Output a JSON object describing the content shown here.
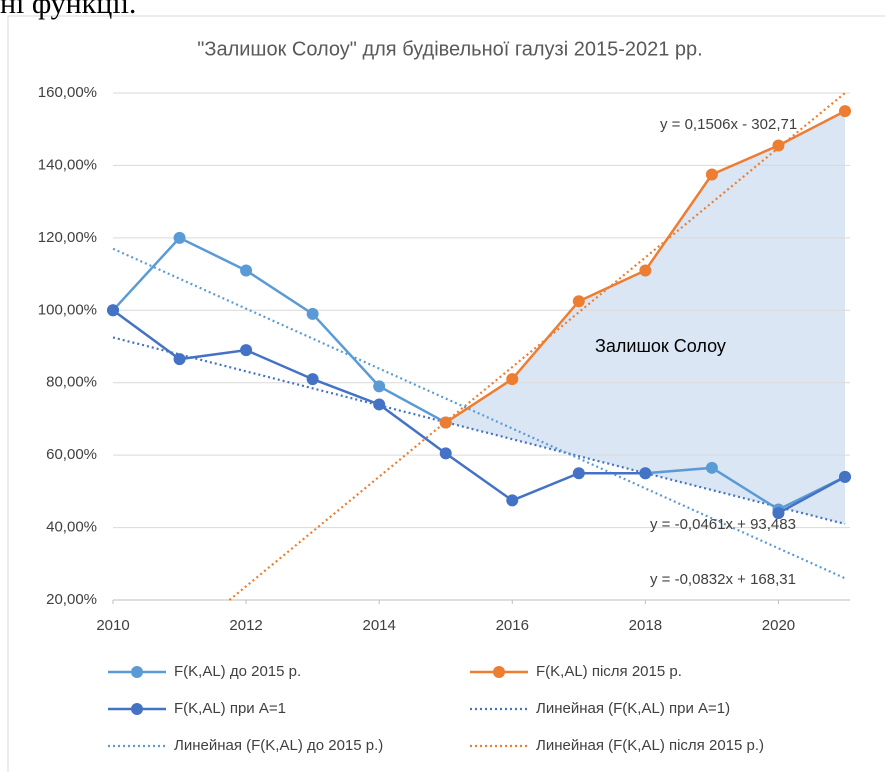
{
  "header_fragment": "ні функції.",
  "chart_data": {
    "type": "line",
    "title": "\"Залишок Солоу\" для будівельної галузі 2015-2021 рр.",
    "x": [
      2010,
      2011,
      2012,
      2013,
      2014,
      2015,
      2016,
      2017,
      2018,
      2019,
      2020,
      2021
    ],
    "series": [
      {
        "name": "F(K,AL) до 2015 р.",
        "color": "#5b9bd5",
        "values": [
          100,
          120,
          111,
          99,
          79,
          69,
          null,
          null,
          55,
          56.5,
          45,
          54
        ]
      },
      {
        "name": "F(K,AL) після 2015 р.",
        "color": "#ed7d31",
        "values": [
          null,
          null,
          null,
          null,
          null,
          69,
          81,
          102.5,
          111,
          137.5,
          145.5,
          155
        ]
      },
      {
        "name": "F(K,AL) при A=1",
        "color": "#4472c4",
        "values": [
          100,
          86.5,
          89,
          81,
          74,
          60.5,
          47.5,
          55,
          55,
          null,
          44,
          54
        ]
      }
    ],
    "trendlines": [
      {
        "name": "Линейная (F(K,AL) при A=1)",
        "color": "#4472c4",
        "x": [
          2010,
          2021
        ],
        "values": [
          92.5,
          41
        ]
      },
      {
        "name": "Линейная (F(K,AL) до 2015 р.)",
        "color": "#5b9bd5",
        "x": [
          2010,
          2021
        ],
        "values": [
          117,
          26
        ]
      },
      {
        "name": "Линейная (F(K,AL) після 2015 р.)",
        "color": "#ed7d31",
        "x": [
          2011.75,
          2021
        ],
        "values": [
          20,
          160
        ]
      }
    ],
    "annotations": [
      "y = 0,1506x - 302,71",
      "Залишок Солоу",
      "y = -0,0461x + 93,483",
      "y = -0,0832x + 168,31"
    ],
    "xlim": [
      2010,
      2021
    ],
    "xticks": [
      2010,
      2012,
      2014,
      2016,
      2018,
      2020
    ],
    "ylim": [
      20,
      160
    ],
    "yticks": [
      {
        "value": 20,
        "label": "20,00%"
      },
      {
        "value": 40,
        "label": "40,00%"
      },
      {
        "value": 60,
        "label": "60,00%"
      },
      {
        "value": 80,
        "label": "80,00%"
      },
      {
        "value": 100,
        "label": "100,00%"
      },
      {
        "value": 120,
        "label": "120,00%"
      },
      {
        "value": 140,
        "label": "140,00%"
      },
      {
        "value": 160,
        "label": "160,00%"
      }
    ],
    "grid": true,
    "fill_color": "#dae6f4"
  }
}
